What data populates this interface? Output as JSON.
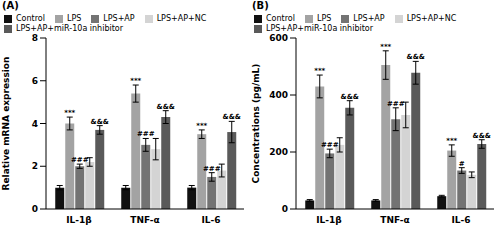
{
  "chart_data": [
    {
      "type": "bar",
      "title": "(A)",
      "ylabel": "Relative mRNA expression",
      "categories": [
        "IL-1β",
        "TNF-α",
        "IL-6"
      ],
      "ylim": [
        0,
        8
      ],
      "yticks": [
        0,
        2,
        4,
        6,
        8
      ],
      "legend": "top",
      "series": [
        {
          "name": "Control",
          "color": "#111111",
          "values": [
            1.0,
            1.0,
            1.0
          ],
          "errors": [
            0.1,
            0.1,
            0.1
          ]
        },
        {
          "name": "LPS",
          "color": "#a3a3a3",
          "values": [
            4.0,
            5.4,
            3.5
          ],
          "errors": [
            0.3,
            0.4,
            0.2
          ],
          "annotations": [
            "***",
            "***",
            "***"
          ]
        },
        {
          "name": "LPS+AP",
          "color": "#737373",
          "values": [
            2.0,
            3.0,
            1.5
          ],
          "errors": [
            0.1,
            0.3,
            0.2
          ],
          "annotations": [
            "###",
            "###",
            "###"
          ]
        },
        {
          "name": "LPS+AP+NC",
          "color": "#d4d4d4",
          "values": [
            2.2,
            2.8,
            1.8
          ],
          "errors": [
            0.2,
            0.5,
            0.3
          ]
        },
        {
          "name": "LPS+AP+miR-10a inhibitor",
          "color": "#5a5a5a",
          "values": [
            3.7,
            4.3,
            3.6
          ],
          "errors": [
            0.2,
            0.3,
            0.5
          ],
          "annotations": [
            "&&&",
            "&&&",
            "&&&"
          ]
        }
      ]
    },
    {
      "type": "bar",
      "title": "(B)",
      "ylabel": "Concentrations (pg/mL)",
      "categories": [
        "IL-1β",
        "TNF-α",
        "IL-6"
      ],
      "ylim": [
        0,
        600
      ],
      "yticks": [
        0,
        200,
        400,
        600
      ],
      "legend": "top",
      "series": [
        {
          "name": "Control",
          "color": "#111111",
          "values": [
            30,
            30,
            45
          ],
          "errors": [
            3,
            3,
            3
          ]
        },
        {
          "name": "LPS",
          "color": "#a3a3a3",
          "values": [
            430,
            505,
            205
          ],
          "errors": [
            40,
            50,
            20
          ],
          "annotations": [
            "***",
            "***",
            "***"
          ]
        },
        {
          "name": "LPS+AP",
          "color": "#737373",
          "values": [
            195,
            315,
            135
          ],
          "errors": [
            15,
            40,
            10
          ],
          "annotations": [
            "###",
            "###",
            "#"
          ]
        },
        {
          "name": "LPS+AP+NC",
          "color": "#d4d4d4",
          "values": [
            225,
            330,
            120
          ],
          "errors": [
            25,
            45,
            10
          ]
        },
        {
          "name": "LPS+AP+miR-10a inhibitor",
          "color": "#5a5a5a",
          "values": [
            355,
            478,
            228
          ],
          "errors": [
            25,
            40,
            15
          ],
          "annotations": [
            "&&&",
            "&&&",
            "&&&"
          ]
        }
      ]
    }
  ]
}
